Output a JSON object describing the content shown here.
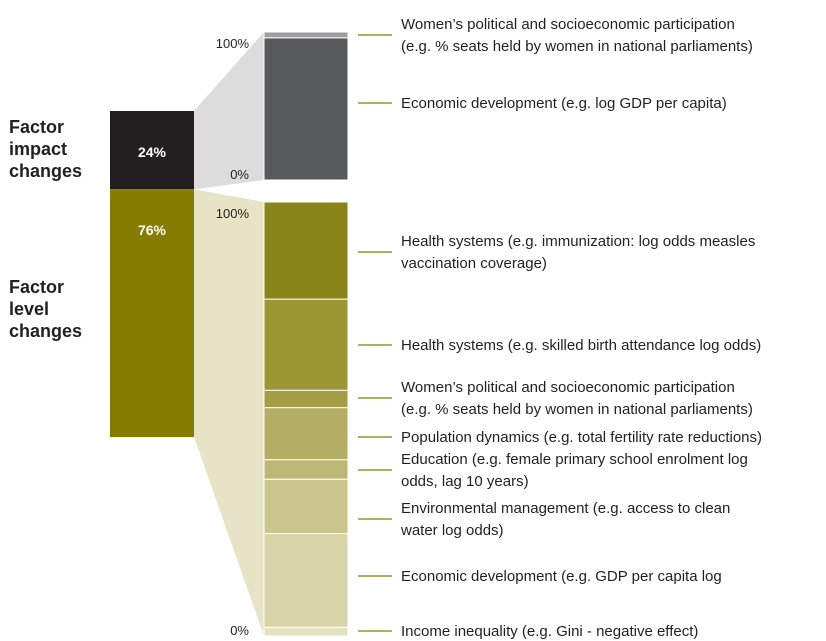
{
  "chart_data": {
    "type": "bar",
    "left_labels": {
      "impact": [
        "Factor",
        "impact",
        "changes"
      ],
      "level": [
        "Factor",
        "level",
        "changes"
      ]
    },
    "main_bar": [
      {
        "name": "Factor impact changes",
        "value": 24,
        "label": "24%",
        "color": "#231f20"
      },
      {
        "name": "Factor level changes",
        "value": 76,
        "label": "76%",
        "color": "#857c00"
      }
    ],
    "ticks": {
      "top": "100%",
      "bottom": "0%"
    },
    "impact_breakdown": {
      "segments": [
        {
          "value": 4,
          "color": "#9e9e9e",
          "label": [
            "Women’s political and socioeconomic participation",
            "(e.g. % seats held by women in national parliaments)"
          ]
        },
        {
          "value": 96,
          "color": "#58595b",
          "label": [
            "Economic development (e.g. log GDP per capita)"
          ]
        }
      ]
    },
    "level_breakdown": {
      "segments": [
        {
          "value": 22.4,
          "color": "#8a8418",
          "label": [
            "Health systems (e.g. immunization: log odds measles",
            "vaccination coverage)"
          ]
        },
        {
          "value": 21,
          "color": "#9c9633",
          "label": [
            "Health systems (e.g. skilled birth attendance log odds)"
          ]
        },
        {
          "value": 4,
          "color": "#a39e45",
          "label": [
            "Women’s political and socioeconomic participation",
            "(e.g. % seats held by women in national parliaments)"
          ]
        },
        {
          "value": 12,
          "color": "#b3ae63",
          "label": [
            "Population dynamics (e.g. total fertility rate reductions)"
          ]
        },
        {
          "value": 4.5,
          "color": "#bdb776",
          "label": [
            "Education (e.g. female primary school enrolment log",
            "odds, lag 10 years)"
          ]
        },
        {
          "value": 12.5,
          "color": "#cbc68e",
          "label": [
            "Environmental management (e.g. access to clean",
            "water log odds)"
          ]
        },
        {
          "value": 21.6,
          "color": "#d8d4a7",
          "label": [
            "Economic development (e.g. GDP per capita log"
          ]
        },
        {
          "value": 2,
          "color": "#e4e1c1",
          "label": [
            "Income inequality (e.g. Gini - negative effect)"
          ]
        }
      ]
    },
    "fan_colors": {
      "impact": "#dcdcdc",
      "level": "#e6e3c6"
    },
    "leader_color": "#857c00"
  }
}
